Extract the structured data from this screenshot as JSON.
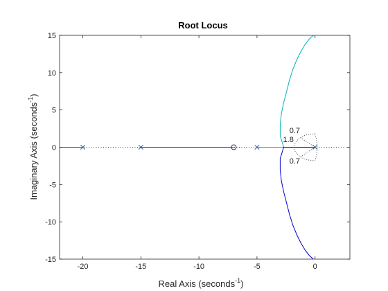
{
  "chart_data": {
    "type": "line",
    "title": "Root Locus",
    "xlabel": "Real Axis (seconds",
    "ylabel": "Imaginary Axis (seconds",
    "axis_unit_exponent": "-1",
    "xlim": [
      -22,
      3
    ],
    "ylim": [
      -15,
      15
    ],
    "x_ticks": [
      -20,
      -15,
      -10,
      -5,
      0
    ],
    "x_tick_labels": [
      "-20",
      "-15",
      "-10",
      "-5",
      "0"
    ],
    "y_ticks": [
      -15,
      -10,
      -5,
      0,
      5,
      10,
      15
    ],
    "y_tick_labels": [
      "-15",
      "-10",
      "-5",
      "0",
      "5",
      "10",
      "15"
    ],
    "grid": false,
    "poles": [
      [
        -20,
        0
      ],
      [
        -15,
        0
      ],
      [
        -5,
        0
      ],
      [
        0,
        0
      ]
    ],
    "zeros": [
      [
        -7,
        0
      ]
    ],
    "series": [
      {
        "color": "#008000",
        "x": [
          -22,
          -20
        ],
        "y": [
          0,
          0
        ]
      },
      {
        "color": "#d00000",
        "x": [
          -15,
          -7
        ],
        "y": [
          0,
          0
        ]
      },
      {
        "color": "#00b3b3",
        "x": [
          -5,
          -2.7,
          -3.0,
          -3.0,
          -2.9,
          -2.7,
          -2.45,
          -2.2,
          -1.9,
          -1.55,
          -1.2,
          -0.85,
          -0.5,
          -0.15
        ],
        "y": [
          0,
          0,
          1.5,
          3,
          4.5,
          6,
          7.5,
          9,
          10.5,
          11.8,
          12.9,
          13.8,
          14.5,
          15
        ]
      },
      {
        "color": "#0000cc",
        "x": [
          0,
          -2.7,
          -3.0,
          -3.0,
          -2.9,
          -2.7,
          -2.45,
          -2.2,
          -1.9,
          -1.55,
          -1.2,
          -0.85,
          -0.5,
          -0.15
        ],
        "y": [
          0,
          0,
          -1.5,
          -3,
          -4.5,
          -6,
          -7.5,
          -9,
          -10.5,
          -11.8,
          -12.9,
          -13.8,
          -14.5,
          -15
        ]
      }
    ],
    "annotations": [
      {
        "text": "0.7",
        "x": -1.75,
        "y": 1.9
      },
      {
        "text": "1.8",
        "x": -2.3,
        "y": 0.7
      },
      {
        "text": "0.7",
        "x": -1.75,
        "y": -2.2
      }
    ]
  }
}
